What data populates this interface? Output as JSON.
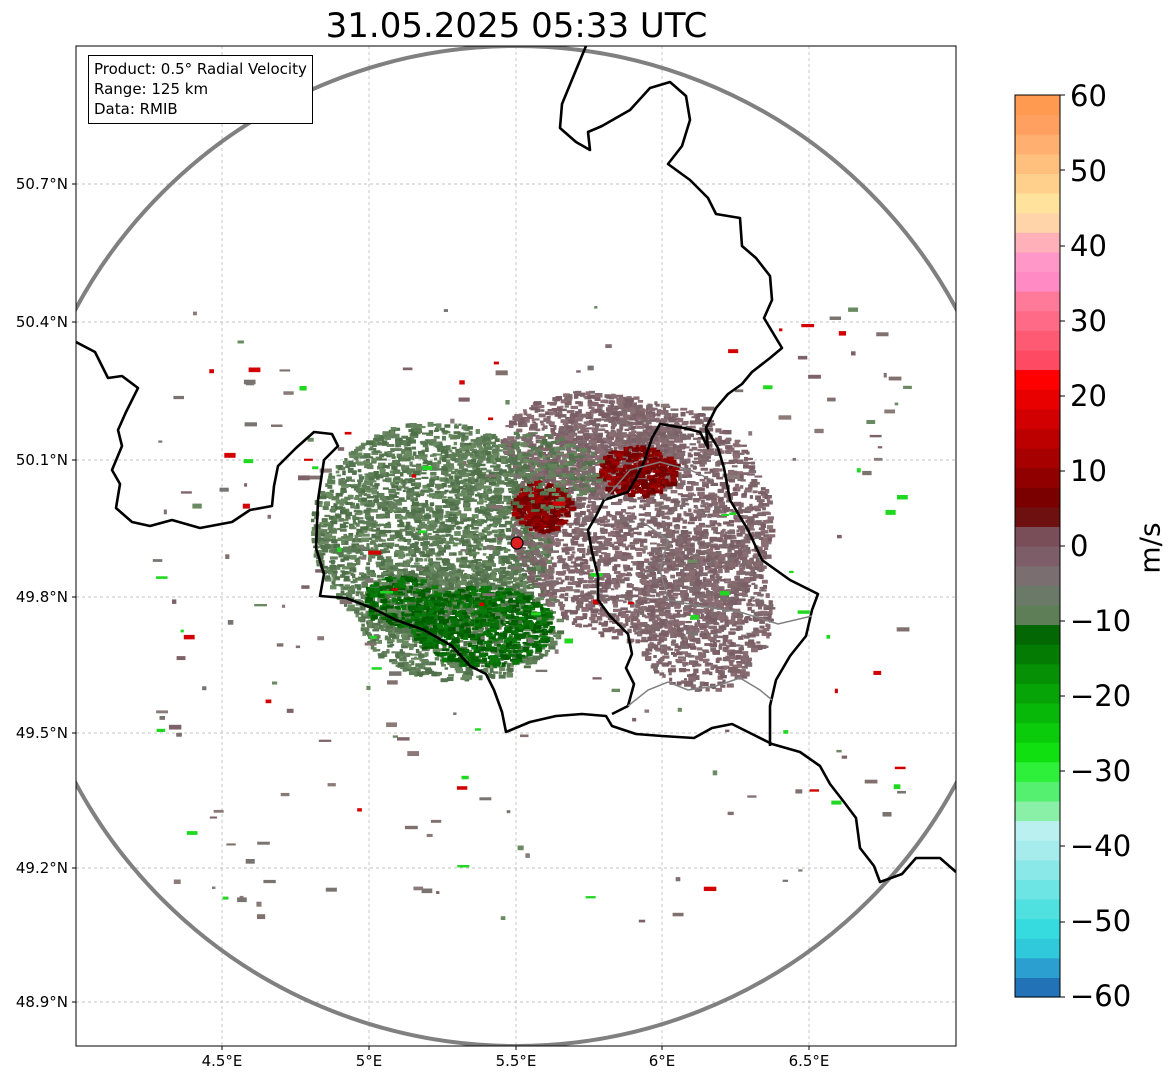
{
  "title": "31.05.2025 05:33 UTC",
  "info": {
    "product": "Product: 0.5° Radial Velocity",
    "range": "Range: 125 km",
    "data": "Data: RMIB"
  },
  "lat_ticks": [
    "50.7°N",
    "50.4°N",
    "50.1°N",
    "49.8°N",
    "49.5°N",
    "49.2°N",
    "48.9°N"
  ],
  "lon_ticks": [
    "4.5°E",
    "5°E",
    "5.5°E",
    "6°E",
    "6.5°E"
  ],
  "colorbar": {
    "label": "m/s",
    "ticks": [
      "60",
      "50",
      "40",
      "30",
      "20",
      "10",
      "0",
      "−10",
      "−20",
      "−30",
      "−40",
      "−50",
      "−60"
    ],
    "min": -60,
    "max": 60,
    "colors": [
      "#2272b8",
      "#2a9fd0",
      "#30c8db",
      "#36dbe0",
      "#4fe0e0",
      "#6de5e5",
      "#8ae8e8",
      "#a6ecec",
      "#baf0f0",
      "#8af0a8",
      "#55f070",
      "#2ef03a",
      "#10e010",
      "#0acc0a",
      "#08b808",
      "#06a406",
      "#059005",
      "#047c04",
      "#036803",
      "#5d7e56",
      "#6b7a68",
      "#7a6e70",
      "#7d5e68",
      "#7a4e58",
      "#6e1010",
      "#7a0000",
      "#900000",
      "#a60000",
      "#bc0000",
      "#d20000",
      "#e80000",
      "#ff0000",
      "#ff4a64",
      "#ff5a74",
      "#ff6a86",
      "#ff7a98",
      "#ff8ac4",
      "#ff98c8",
      "#ffb0b8",
      "#ffd4a8",
      "#ffe29c",
      "#ffd08c",
      "#ffc07e",
      "#ffb070",
      "#ffa060",
      "#ff9a50"
    ]
  },
  "radar_site": {
    "lon": 5.51,
    "lat": 49.91
  },
  "map_extent": {
    "lon_min": 4.0,
    "lon_max": 7.0,
    "lat_min": 48.8,
    "lat_max": 51.0
  }
}
